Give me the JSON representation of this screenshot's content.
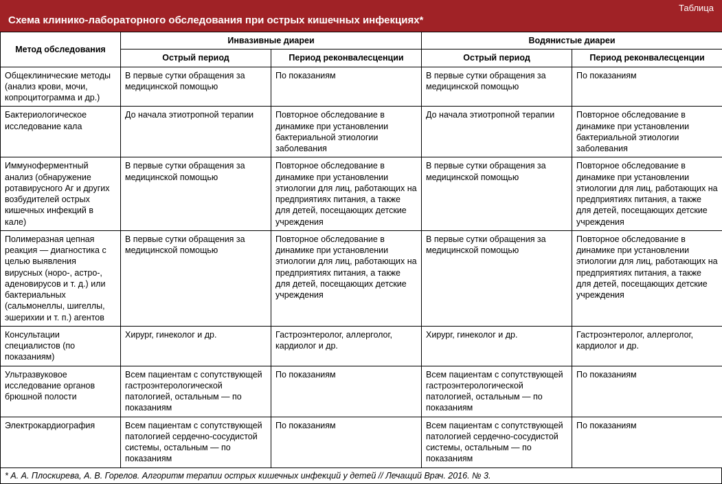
{
  "header": {
    "label": "Таблица",
    "title": "Схема клинико-лабораторного обследования при острых кишечных инфекциях*"
  },
  "columns": {
    "method": "Метод обследования",
    "group1": "Инвазивные диареи",
    "group2": "Водянистые диареи",
    "sub_acute": "Острый период",
    "sub_conval": "Период реконвалесценции"
  },
  "rows": [
    {
      "method": "Общеклинические методы (анализ крови, мочи, копроцитограмма и др.)",
      "inv_acute": "В первые сутки обращения за медицинской помощью",
      "inv_conval": "По показаниям",
      "wat_acute": "В первые сутки обращения за медицинской помощью",
      "wat_conval": "По показаниям"
    },
    {
      "method": "Бактериологическое исследование кала",
      "inv_acute": "До начала этиотропной терапии",
      "inv_conval": "Повторное обследование в динамике при установлении бактериальной этиологии заболевания",
      "wat_acute": "До начала этиотропной терапии",
      "wat_conval": "Повторное обследование в динамике при установлении бактериальной этиологии заболевания"
    },
    {
      "method": "Иммуноферментный анализ (обнаружение ротавирусного Аг и других возбудителей острых кишечных инфекций в кале)",
      "inv_acute": "В первые сутки обращения за медицинской помощью",
      "inv_conval": "Повторное обследование в динамике при установлении этиологии для лиц, работающих на предприятиях питания, а также для детей, посещающих детские учреждения",
      "wat_acute": "В первые сутки обращения за медицинской помощью",
      "wat_conval": "Повторное обследование в динамике при установлении этиологии для лиц, работающих на предприятиях питания, а также для детей, посещающих детские учреждения"
    },
    {
      "method": "Полимеразная цепная реакция — диагностика с целью выявления вирусных (норо-, астро-, аденовирусов и т. д.) или бактериальных (сальмонеллы, шигеллы, эшерихии и т. п.) агентов",
      "inv_acute": "В первые сутки обращения за медицинской помощью",
      "inv_conval": "Повторное обследование в динамике при установлении этиологии для лиц, работающих на предприятиях питания, а также для детей, посещающих детские учреждения",
      "wat_acute": "В первые сутки обращения за медицинской помощью",
      "wat_conval": "Повторное обследование в динамике при установлении этиологии для лиц, работающих на предприятиях питания, а также для детей, посещающих детские учреждения"
    },
    {
      "method": "Консультации специалистов (по показаниям)",
      "inv_acute": "Хирург, гинеколог и др.",
      "inv_conval": "Гастроэнтеролог, аллерголог, кардиолог и др.",
      "wat_acute": "Хирург, гинеколог и др.",
      "wat_conval": "Гастроэнтеролог, аллерголог, кардиолог и др."
    },
    {
      "method": "Ультразвуковое исследование органов брюшной полости",
      "inv_acute": "Всем пациентам с сопутствующей гастроэнтерологической патологией, остальным — по показаниям",
      "inv_conval": "По показаниям",
      "wat_acute": "Всем пациентам с сопутствующей гастроэнтерологической патологией, остальным — по показаниям",
      "wat_conval": "По показаниям"
    },
    {
      "method": "Электрокардиография",
      "inv_acute": "Всем пациентам с сопутствующей патологией сердечно-сосудистой системы, остальным — по показаниям",
      "inv_conval": "По показаниям",
      "wat_acute": "Всем пациентам с сопутствующей патологией сердечно-сосудистой системы, остальным — по показаниям",
      "wat_conval": "По показаниям"
    }
  ],
  "footnote": "* А. А. Плоскирева, А. В. Горелов. Алгоритм терапии острых кишечных инфекций у детей // Лечащий Врач. 2016. № 3."
}
